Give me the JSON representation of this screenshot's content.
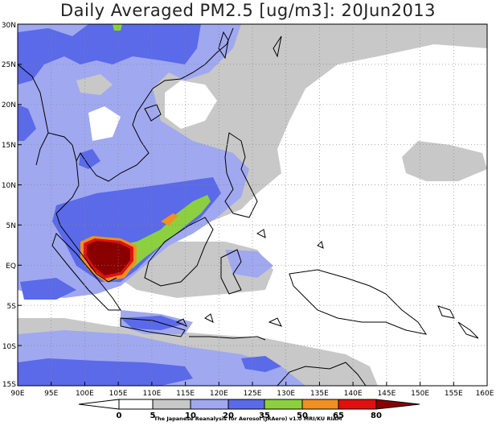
{
  "title": "Daily Averaged PM2.5 [ug/m3]: 20Jun2013",
  "axes": {
    "lon_ticks": [
      "90E",
      "95E",
      "100E",
      "105E",
      "110E",
      "115E",
      "120E",
      "125E",
      "130E",
      "135E",
      "140E",
      "145E",
      "150E",
      "155E",
      "160E"
    ],
    "lat_ticks": [
      "30N",
      "25N",
      "20N",
      "15N",
      "10N",
      "5N",
      "EQ",
      "5S",
      "10S",
      "15S"
    ]
  },
  "colorbar": {
    "labels": [
      "0",
      "5",
      "10",
      "20",
      "35",
      "50",
      "65",
      "80"
    ],
    "colors": [
      "#ffffff",
      "#ffffff",
      "#c8c8c8",
      "#a0a8f0",
      "#5a6ae8",
      "#8cd040",
      "#f09020",
      "#e01010",
      "#8a0000"
    ]
  },
  "credit": "The Japanese Reanalysis for Aerosol (JRAero) v1.0 MRI/KU RIAM"
}
